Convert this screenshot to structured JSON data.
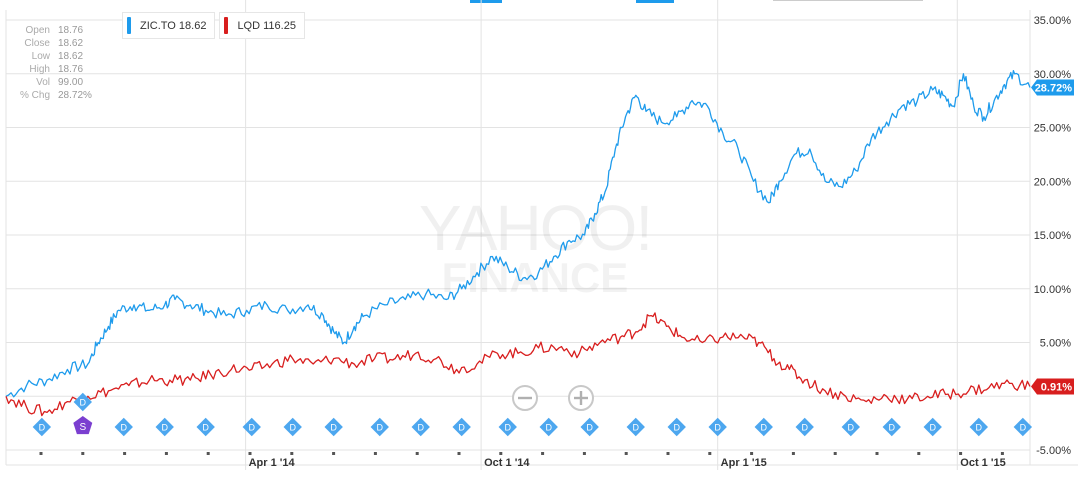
{
  "colors": {
    "zic": "#1e9bec",
    "lqd": "#d81e1e",
    "grid": "#e3e3e3",
    "event": "#4da7ef",
    "split": "#7b3fd0"
  },
  "ohlc": [
    {
      "label": "Open",
      "value": "18.76"
    },
    {
      "label": "Close",
      "value": "18.62"
    },
    {
      "label": "Low",
      "value": "18.62"
    },
    {
      "label": "High",
      "value": "18.76"
    },
    {
      "label": "Vol",
      "value": "99.00"
    },
    {
      "label": "% Chg",
      "value": "28.72%"
    }
  ],
  "legend": [
    {
      "text": "ZIC.TO 18.62",
      "color": "#1e9bec"
    },
    {
      "text": "LQD 116.25",
      "color": "#d81e1e"
    }
  ],
  "watermark": {
    "line1": "YAHOO!",
    "line2": "FINANCE"
  },
  "event_glyphs": {
    "dividend": "D",
    "split": "S"
  },
  "zoom_out_icon": "minus-circle-icon",
  "zoom_in_icon": "plus-circle-icon",
  "chart_data": {
    "type": "line",
    "y_axis": {
      "min": -5,
      "max": 35,
      "step": 5,
      "unit": "%",
      "position": "right"
    },
    "x_ticks": [
      {
        "label": "Apr 1 '14",
        "t": 0.234
      },
      {
        "label": "Oct 1 '14",
        "t": 0.464
      },
      {
        "label": "Apr 1 '15",
        "t": 0.695
      },
      {
        "label": "Oct 1 '15",
        "t": 0.929
      }
    ],
    "y_tick_labels": [
      "35.00%",
      "30.00%",
      "25.00%",
      "20.00%",
      "15.00%",
      "10.00%",
      "5.00%",
      "-5.00%"
    ],
    "grid": true,
    "series": [
      {
        "name": "ZIC.TO",
        "color": "#1e9bec",
        "last_label": "28.72%",
        "points": [
          [
            0,
            0
          ],
          [
            0.02,
            1.0
          ],
          [
            0.04,
            1.5
          ],
          [
            0.06,
            2.5
          ],
          [
            0.08,
            3.0
          ],
          [
            0.09,
            5.0
          ],
          [
            0.1,
            6.5
          ],
          [
            0.11,
            8.0
          ],
          [
            0.125,
            8.5
          ],
          [
            0.14,
            8.0
          ],
          [
            0.155,
            8.5
          ],
          [
            0.165,
            9.0
          ],
          [
            0.18,
            8.5
          ],
          [
            0.195,
            8.0
          ],
          [
            0.215,
            7.5
          ],
          [
            0.235,
            8.0
          ],
          [
            0.255,
            8.5
          ],
          [
            0.275,
            8.0
          ],
          [
            0.295,
            8.5
          ],
          [
            0.31,
            7.5
          ],
          [
            0.32,
            6.0
          ],
          [
            0.33,
            5.0
          ],
          [
            0.34,
            6.5
          ],
          [
            0.35,
            7.5
          ],
          [
            0.37,
            8.5
          ],
          [
            0.39,
            9.0
          ],
          [
            0.41,
            9.5
          ],
          [
            0.43,
            9.0
          ],
          [
            0.445,
            10.0
          ],
          [
            0.46,
            11.5
          ],
          [
            0.475,
            13.0
          ],
          [
            0.49,
            12.0
          ],
          [
            0.505,
            11.0
          ],
          [
            0.52,
            11.5
          ],
          [
            0.535,
            13.0
          ],
          [
            0.55,
            14.5
          ],
          [
            0.565,
            15.0
          ],
          [
            0.575,
            17.0
          ],
          [
            0.585,
            19.0
          ],
          [
            0.595,
            23.0
          ],
          [
            0.605,
            26.0
          ],
          [
            0.615,
            28.0
          ],
          [
            0.625,
            26.5
          ],
          [
            0.64,
            25.5
          ],
          [
            0.655,
            26.0
          ],
          [
            0.67,
            27.5
          ],
          [
            0.685,
            27.0
          ],
          [
            0.7,
            24.5
          ],
          [
            0.715,
            23.0
          ],
          [
            0.73,
            20.0
          ],
          [
            0.745,
            18.0
          ],
          [
            0.755,
            20.0
          ],
          [
            0.77,
            22.5
          ],
          [
            0.785,
            23.0
          ],
          [
            0.8,
            20.0
          ],
          [
            0.815,
            19.5
          ],
          [
            0.83,
            21.0
          ],
          [
            0.845,
            24.0
          ],
          [
            0.86,
            25.5
          ],
          [
            0.875,
            27.0
          ],
          [
            0.89,
            27.5
          ],
          [
            0.905,
            28.5
          ],
          [
            0.915,
            28.0
          ],
          [
            0.925,
            27.0
          ],
          [
            0.935,
            30.0
          ],
          [
            0.945,
            27.0
          ],
          [
            0.955,
            26.0
          ],
          [
            0.965,
            27.5
          ],
          [
            0.975,
            29.0
          ],
          [
            0.985,
            30.0
          ],
          [
            1.0,
            28.72
          ]
        ]
      },
      {
        "name": "LQD",
        "color": "#d81e1e",
        "last_label": "0.91%",
        "points": [
          [
            0,
            0
          ],
          [
            0.02,
            -1.0
          ],
          [
            0.04,
            -1.5
          ],
          [
            0.06,
            -0.5
          ],
          [
            0.08,
            0
          ],
          [
            0.1,
            0.5
          ],
          [
            0.12,
            1.0
          ],
          [
            0.14,
            1.5
          ],
          [
            0.16,
            1.5
          ],
          [
            0.18,
            1.5
          ],
          [
            0.2,
            2.0
          ],
          [
            0.22,
            2.5
          ],
          [
            0.24,
            2.5
          ],
          [
            0.26,
            3.0
          ],
          [
            0.28,
            3.5
          ],
          [
            0.3,
            3.0
          ],
          [
            0.32,
            3.5
          ],
          [
            0.34,
            3.0
          ],
          [
            0.36,
            3.5
          ],
          [
            0.38,
            3.5
          ],
          [
            0.4,
            4.0
          ],
          [
            0.42,
            3.5
          ],
          [
            0.44,
            2.5
          ],
          [
            0.46,
            3.0
          ],
          [
            0.48,
            4.0
          ],
          [
            0.5,
            4.0
          ],
          [
            0.52,
            4.5
          ],
          [
            0.54,
            4.5
          ],
          [
            0.56,
            4.0
          ],
          [
            0.58,
            5.0
          ],
          [
            0.6,
            5.5
          ],
          [
            0.615,
            6.0
          ],
          [
            0.63,
            7.5
          ],
          [
            0.645,
            6.5
          ],
          [
            0.66,
            5.5
          ],
          [
            0.68,
            5.0
          ],
          [
            0.7,
            5.5
          ],
          [
            0.72,
            5.5
          ],
          [
            0.735,
            5.0
          ],
          [
            0.75,
            3.5
          ],
          [
            0.765,
            2.5
          ],
          [
            0.78,
            1.5
          ],
          [
            0.8,
            0.5
          ],
          [
            0.82,
            0
          ],
          [
            0.84,
            -0.5
          ],
          [
            0.86,
            0
          ],
          [
            0.88,
            -0.3
          ],
          [
            0.9,
            0
          ],
          [
            0.92,
            0.2
          ],
          [
            0.94,
            0.5
          ],
          [
            0.96,
            0.8
          ],
          [
            0.98,
            1.2
          ],
          [
            1.0,
            0.91
          ]
        ]
      }
    ],
    "events": [
      {
        "t": 0.035,
        "type": "D"
      },
      {
        "t": 0.075,
        "type": "D",
        "row": "top"
      },
      {
        "t": 0.075,
        "type": "S"
      },
      {
        "t": 0.115,
        "type": "D"
      },
      {
        "t": 0.155,
        "type": "D"
      },
      {
        "t": 0.195,
        "type": "D"
      },
      {
        "t": 0.24,
        "type": "D"
      },
      {
        "t": 0.28,
        "type": "D"
      },
      {
        "t": 0.32,
        "type": "D"
      },
      {
        "t": 0.365,
        "type": "D"
      },
      {
        "t": 0.405,
        "type": "D"
      },
      {
        "t": 0.445,
        "type": "D"
      },
      {
        "t": 0.49,
        "type": "D"
      },
      {
        "t": 0.53,
        "type": "D"
      },
      {
        "t": 0.57,
        "type": "D"
      },
      {
        "t": 0.615,
        "type": "D"
      },
      {
        "t": 0.655,
        "type": "D"
      },
      {
        "t": 0.695,
        "type": "D"
      },
      {
        "t": 0.74,
        "type": "D"
      },
      {
        "t": 0.78,
        "type": "D"
      },
      {
        "t": 0.825,
        "type": "D"
      },
      {
        "t": 0.865,
        "type": "D"
      },
      {
        "t": 0.905,
        "type": "D"
      },
      {
        "t": 0.95,
        "type": "D"
      },
      {
        "t": 0.993,
        "type": "D"
      }
    ]
  }
}
